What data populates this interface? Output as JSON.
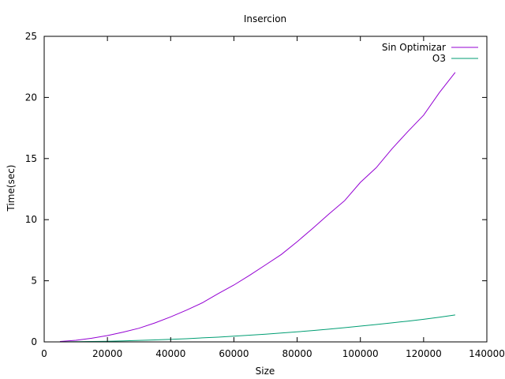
{
  "chart_data": {
    "type": "line",
    "title": "Insercion",
    "xlabel": "Size",
    "ylabel": "Time(sec)",
    "xlim": [
      0,
      140000
    ],
    "ylim": [
      0,
      25
    ],
    "x_ticks": [
      0,
      20000,
      40000,
      60000,
      80000,
      100000,
      120000,
      140000
    ],
    "y_ticks": [
      0,
      5,
      10,
      15,
      20,
      25
    ],
    "grid": false,
    "legend_position": "top-right",
    "series": [
      {
        "name": "Sin Optimizar",
        "color": "#9400d3",
        "x": [
          5000,
          10000,
          15000,
          20000,
          25000,
          30000,
          35000,
          40000,
          45000,
          50000,
          55000,
          60000,
          65000,
          70000,
          75000,
          80000,
          85000,
          90000,
          95000,
          100000,
          105000,
          110000,
          115000,
          120000,
          125000,
          130000
        ],
        "y": [
          0.03,
          0.13,
          0.3,
          0.52,
          0.8,
          1.12,
          1.55,
          2.05,
          2.6,
          3.2,
          3.95,
          4.65,
          5.45,
          6.3,
          7.15,
          8.2,
          9.3,
          10.45,
          11.55,
          13.05,
          14.25,
          15.8,
          17.2,
          18.55,
          20.4,
          22.05
        ]
      },
      {
        "name": "O3",
        "color": "#009e73",
        "x": [
          5000,
          10000,
          15000,
          20000,
          25000,
          30000,
          35000,
          40000,
          45000,
          50000,
          55000,
          60000,
          65000,
          70000,
          75000,
          80000,
          85000,
          90000,
          95000,
          100000,
          105000,
          110000,
          115000,
          120000,
          125000,
          130000
        ],
        "y": [
          0.003,
          0.013,
          0.03,
          0.053,
          0.08,
          0.12,
          0.16,
          0.21,
          0.26,
          0.33,
          0.39,
          0.47,
          0.55,
          0.63,
          0.73,
          0.82,
          0.93,
          1.04,
          1.16,
          1.29,
          1.42,
          1.56,
          1.7,
          1.85,
          2.02,
          2.2
        ]
      }
    ]
  }
}
